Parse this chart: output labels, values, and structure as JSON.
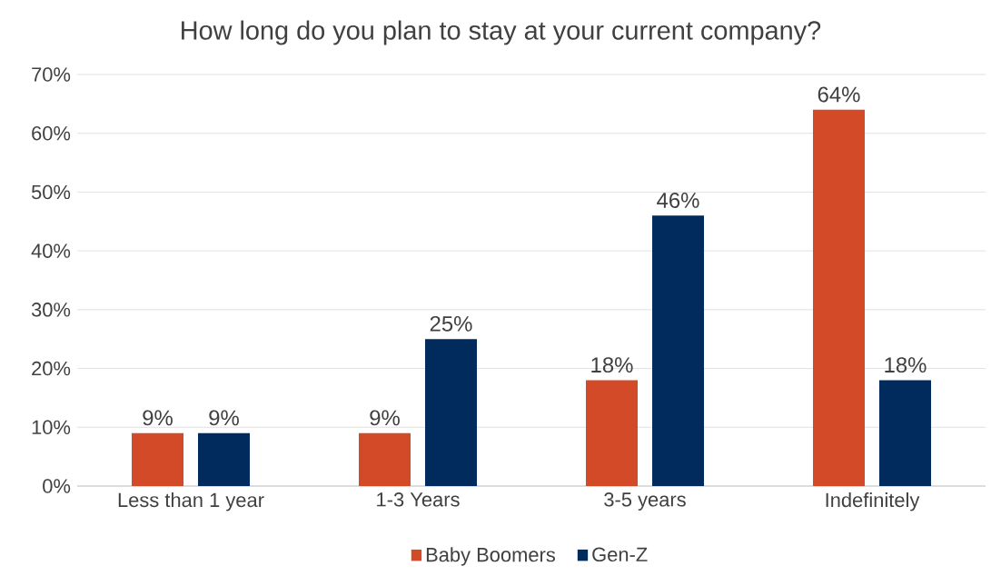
{
  "chart_data": {
    "type": "bar",
    "title": "How long do you plan to stay at your current company?",
    "categories": [
      "Less than 1 year",
      "1-3 Years",
      "3-5 years",
      "Indefinitely"
    ],
    "series": [
      {
        "name": "Baby Boomers",
        "color": "#d24a27",
        "values": [
          9,
          9,
          18,
          64
        ],
        "value_labels": [
          "9%",
          "9%",
          "18%",
          "64%"
        ]
      },
      {
        "name": "Gen-Z",
        "color": "#002b5c",
        "values": [
          9,
          25,
          46,
          18
        ],
        "value_labels": [
          "9%",
          "25%",
          "46%",
          "18%"
        ]
      }
    ],
    "ylim": [
      0,
      70
    ],
    "yticks": [
      {
        "value": 0,
        "label": "0%"
      },
      {
        "value": 10,
        "label": "10%"
      },
      {
        "value": 20,
        "label": "20%"
      },
      {
        "value": 30,
        "label": "30%"
      },
      {
        "value": 40,
        "label": "40%"
      },
      {
        "value": 50,
        "label": "50%"
      },
      {
        "value": 60,
        "label": "60%"
      },
      {
        "value": 70,
        "label": "70%"
      }
    ],
    "grid": "y",
    "legend": "bottom"
  }
}
